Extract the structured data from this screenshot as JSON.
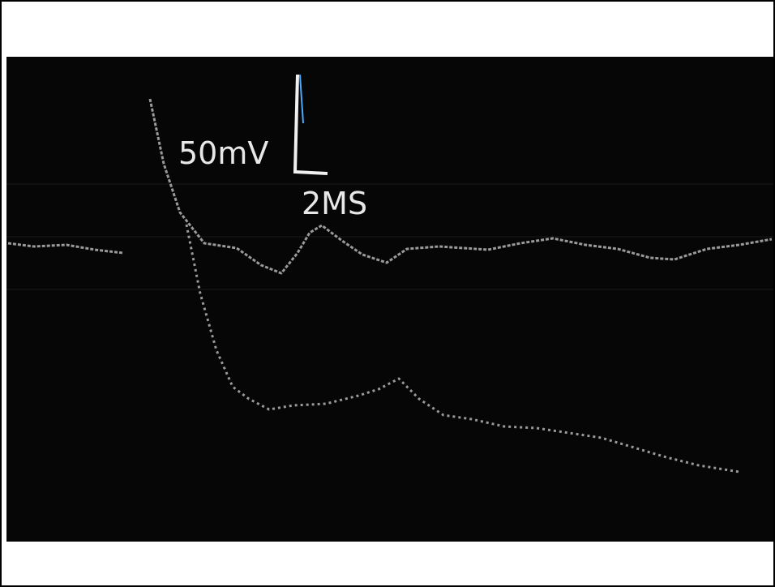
{
  "image": {
    "scale_labels": {
      "voltage": "50mV",
      "time": "2MS"
    }
  }
}
